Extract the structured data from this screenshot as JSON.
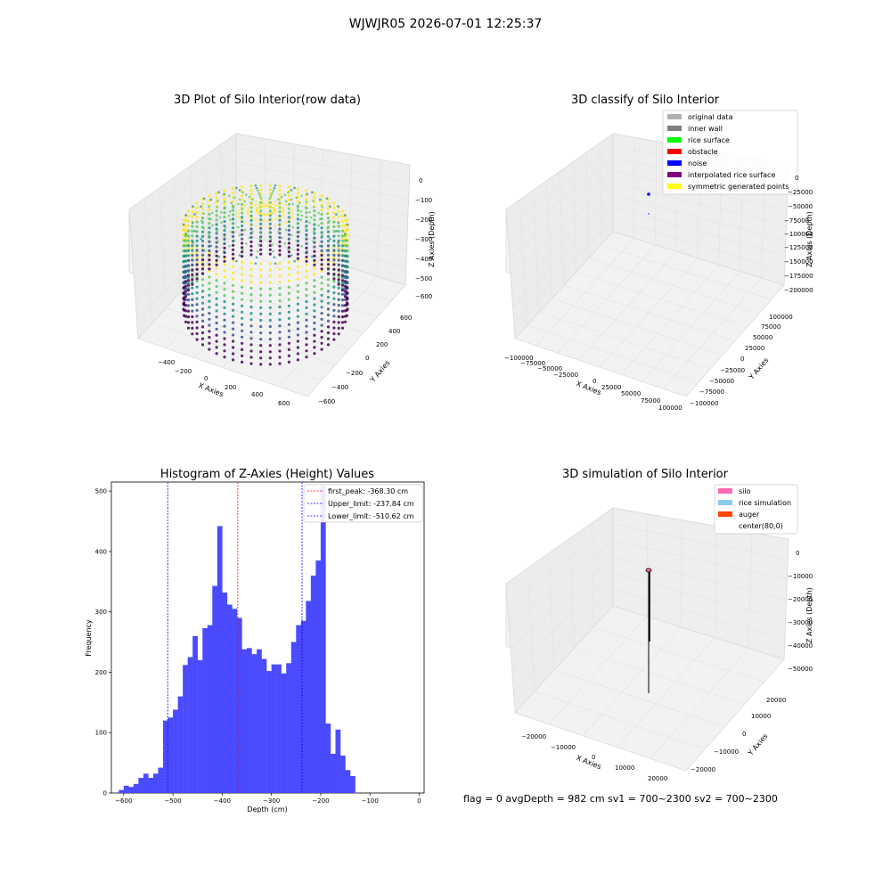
{
  "figure": {
    "suptitle": "WJWJR05 2026-07-01 12:25:37",
    "status_text": "flag = 0     avgDepth = 982 cm  sv1 = 700~2300  sv2 = 700~2300"
  },
  "colors": {
    "hist_bar": "#4a4aff",
    "upper_line": "#0000ff",
    "lower_line": "#0000ff",
    "peak_line": "#ff0000",
    "viridis_low": "#440154",
    "viridis_high": "#fde725"
  },
  "panels": {
    "raw": {
      "title": "3D Plot of Silo Interior(row data)",
      "xlabel": "X Axies",
      "ylabel": "Y Axies",
      "zlabel": "Z Axies (Depth)",
      "xticks": [
        "−400",
        "−200",
        "0",
        "200",
        "400",
        "600"
      ],
      "yticks": [
        "−600",
        "−400",
        "−200",
        "0",
        "200",
        "400",
        "600"
      ],
      "zticks": [
        "0",
        "−100",
        "−200",
        "−300",
        "−400",
        "−500",
        "−600"
      ]
    },
    "classify": {
      "title": "3D classify of Silo Interior",
      "xlabel": "X Axies",
      "ylabel": "Y Axies",
      "zlabel": "Z Axies (Depth)",
      "xticks": [
        "−100000",
        "−75000",
        "−50000",
        "−25000",
        "0",
        "25000",
        "50000",
        "75000",
        "100000"
      ],
      "yticks": [
        "−100000",
        "−75000",
        "−50000",
        "−25000",
        "0",
        "25000",
        "50000",
        "75000",
        "100000"
      ],
      "zticks": [
        "0",
        "−25000",
        "−50000",
        "−75000",
        "−100000",
        "−125000",
        "−150000",
        "−175000",
        "−200000"
      ],
      "legend": [
        {
          "label": "original data",
          "color": "#b0b0b0"
        },
        {
          "label": "inner wall",
          "color": "#808080"
        },
        {
          "label": "rice surface",
          "color": "#00ff00"
        },
        {
          "label": "obstacle",
          "color": "#ff0000"
        },
        {
          "label": "noise",
          "color": "#0000ff"
        },
        {
          "label": "interpolated rice surface",
          "color": "#800080"
        },
        {
          "label": "symmetric generated points",
          "color": "#ffff00"
        }
      ]
    },
    "simulation": {
      "title": "3D simulation of Silo Interior",
      "xlabel": "X Axies",
      "ylabel": "Y Axies",
      "zlabel": "Z Axies (Depth)",
      "xticks": [
        "−20000",
        "−10000",
        "0",
        "10000",
        "20000"
      ],
      "yticks": [
        "−20000",
        "−10000",
        "0",
        "10000",
        "20000"
      ],
      "zticks": [
        "0",
        "−10000",
        "−20000",
        "−30000",
        "−40000",
        "−50000"
      ],
      "legend": [
        {
          "label": "silo",
          "color": "#ff69b4"
        },
        {
          "label": "rice simulation",
          "color": "#87ceeb"
        },
        {
          "label": "auger",
          "color": "#ff4500"
        },
        {
          "label": "center(80,0)",
          "color": "#ffffff"
        }
      ]
    }
  },
  "chart_data": {
    "type": "bar",
    "title": "Histogram of Z-Axies (Height) Values",
    "xlabel": "Depth (cm)",
    "ylabel": "Frequency",
    "xlim": [
      -625,
      10
    ],
    "ylim": [
      0,
      515
    ],
    "xticks": [
      "−600",
      "−500",
      "−400",
      "−300",
      "−200",
      "−100",
      "0"
    ],
    "xtick_values": [
      -600,
      -500,
      -400,
      -300,
      -200,
      -100,
      0
    ],
    "yticks": [
      "0",
      "100",
      "200",
      "300",
      "400",
      "500"
    ],
    "ytick_values": [
      0,
      100,
      200,
      300,
      400,
      500
    ],
    "bin_start": -610,
    "bin_width": 10,
    "values": [
      5,
      12,
      10,
      15,
      25,
      32,
      25,
      32,
      42,
      120,
      125,
      138,
      160,
      212,
      225,
      260,
      220,
      273,
      278,
      343,
      442,
      332,
      312,
      305,
      290,
      238,
      240,
      230,
      238,
      222,
      202,
      213,
      213,
      198,
      215,
      250,
      278,
      285,
      318,
      360,
      385,
      508,
      115,
      65,
      105,
      62,
      38,
      28
    ],
    "vlines": [
      {
        "label": "first_peak: -368.30 cm",
        "x": -368.3,
        "color": "#ff0000"
      },
      {
        "label": "Upper_limit: -237.84 cm",
        "x": -237.84,
        "color": "#0000ff"
      },
      {
        "label": "Lower_limit: -510.62 cm",
        "x": -510.62,
        "color": "#0000ff"
      }
    ],
    "legend_position": "upper-right",
    "grid": false
  }
}
